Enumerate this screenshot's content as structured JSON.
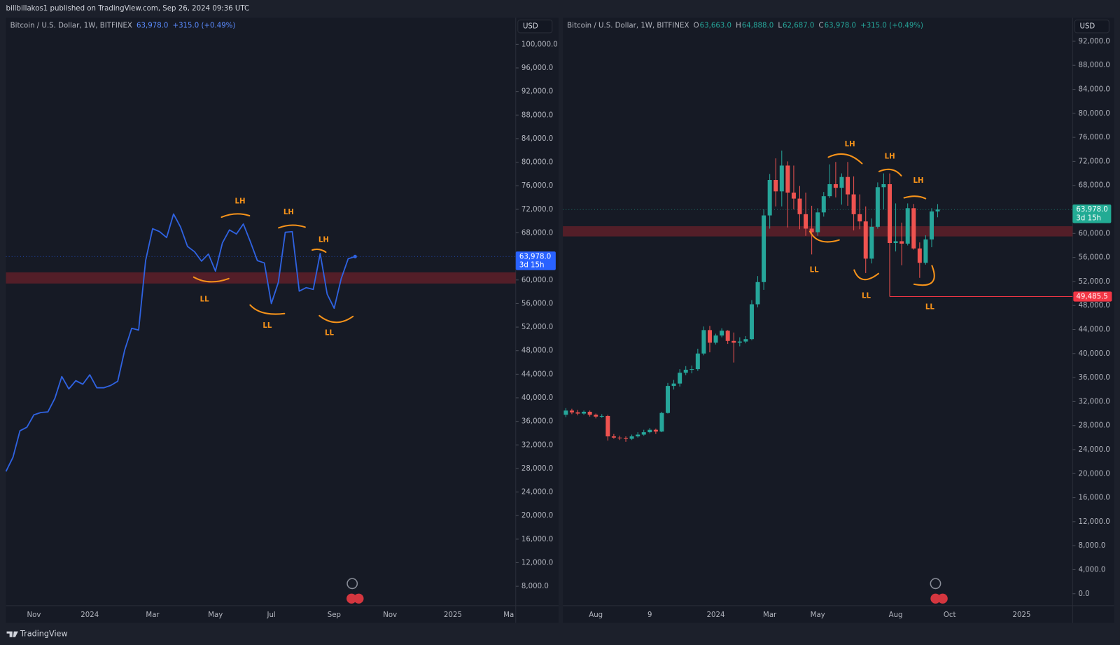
{
  "header": {
    "top": "billbillakos1 published on TradingView.com, Sep 26, 2024 09:36 UTC",
    "footer": "TradingView"
  },
  "chart_data": [
    {
      "type": "line",
      "title": "Bitcoin / U.S. Dollar, 1W, BITFINEX",
      "change": "+315.0 (+0.49%)",
      "currency": "USD",
      "categories": [
        null,
        null,
        null,
        null,
        "Nov",
        null,
        null,
        null,
        null,
        null,
        null,
        null,
        "2024",
        null,
        null,
        null,
        null,
        null,
        null,
        null,
        null,
        "Mar",
        null,
        null,
        null,
        null,
        null,
        null,
        null,
        null,
        "May",
        null,
        null,
        null,
        null,
        null,
        null,
        null,
        "Jul",
        null,
        null,
        null,
        null,
        null,
        null,
        null,
        null,
        "Sep",
        null,
        null,
        null,
        null,
        null,
        null,
        null,
        "Nov",
        null,
        null,
        null,
        null,
        null,
        null,
        null,
        null,
        "2025",
        null,
        null,
        null,
        null,
        null,
        null,
        null,
        "Ma",
        null
      ],
      "values": [
        27500,
        29900,
        34400,
        35000,
        37100,
        37500,
        37600,
        39900,
        43600,
        41500,
        42900,
        42300,
        43900,
        41700,
        41700,
        42100,
        42800,
        48100,
        51800,
        51500,
        63300,
        68700,
        68200,
        67200,
        71200,
        69000,
        65700,
        64800,
        63200,
        64400,
        61500,
        66300,
        68500,
        67800,
        69500,
        66500,
        63300,
        62900,
        56000,
        59600,
        68100,
        68200,
        58100,
        58700,
        58400,
        64500,
        57600,
        55200,
        60200,
        63600,
        63978,
        null,
        null,
        null,
        null,
        null,
        null,
        null,
        null,
        null,
        null,
        null,
        null,
        null,
        null,
        null,
        null,
        null,
        null,
        null,
        null,
        null,
        null,
        null
      ],
      "color": "#2f62e0",
      "ylim": [
        4700,
        104500
      ],
      "yticks": [
        {
          "value": 8000,
          "label": "8,000.0"
        },
        {
          "value": 12000,
          "label": "12,000.0"
        },
        {
          "value": 16000,
          "label": "16,000.0"
        },
        {
          "value": 20000,
          "label": "20,000.0"
        },
        {
          "value": 24000,
          "label": "24,000.0"
        },
        {
          "value": 28000,
          "label": "28,000.0"
        },
        {
          "value": 32000,
          "label": "32,000.0"
        },
        {
          "value": 36000,
          "label": "36,000.0"
        },
        {
          "value": 40000,
          "label": "40,000.0"
        },
        {
          "value": 44000,
          "label": "44,000.0"
        },
        {
          "value": 48000,
          "label": "48,000.0"
        },
        {
          "value": 52000,
          "label": "52,000.0"
        },
        {
          "value": 56000,
          "label": "56,000.0"
        },
        {
          "value": 60000,
          "label": "60,000.0"
        },
        {
          "value": 64000,
          "label": "64,000.0"
        },
        {
          "value": 68000,
          "label": "68,000.0"
        },
        {
          "value": 72000,
          "label": "72,000.0"
        },
        {
          "value": 76000,
          "label": "76,000.0"
        },
        {
          "value": 80000,
          "label": "80,000.0"
        },
        {
          "value": 84000,
          "label": "84,000.0"
        },
        {
          "value": 88000,
          "label": "88,000.0"
        },
        {
          "value": 92000,
          "label": "92,000.0"
        },
        {
          "value": 96000,
          "label": "96,000.0"
        },
        {
          "value": 100000,
          "label": "100,000.0"
        }
      ],
      "zone": [
        59400,
        61300
      ],
      "zone_color": "#5e2029",
      "last_price": {
        "value": 63978,
        "label": "63,978.0",
        "countdown": "3d 15h",
        "color": "#2962ff"
      },
      "annotations": [
        "LH",
        "LH",
        "LH",
        "LL",
        "LL",
        "LL"
      ],
      "annotation_color": "#f7931a"
    },
    {
      "type": "candlestick",
      "title": "Bitcoin / U.S. Dollar, 1W, BITFINEX",
      "ohlc_keys": [
        "O",
        "H",
        "L",
        "C"
      ],
      "ohlc_labels": [
        "63,663.0",
        "64,888.0",
        "62,687.0",
        "63,978.0"
      ],
      "change": "+315.0 (+0.49%)",
      "currency": "USD",
      "categories": [
        null,
        null,
        null,
        null,
        null,
        "Aug",
        null,
        null,
        null,
        null,
        null,
        null,
        null,
        null,
        "9",
        null,
        null,
        null,
        null,
        null,
        null,
        null,
        null,
        null,
        null,
        "2024",
        null,
        null,
        null,
        null,
        null,
        null,
        null,
        null,
        "Mar",
        null,
        null,
        null,
        null,
        null,
        null,
        null,
        "May",
        null,
        null,
        null,
        null,
        null,
        null,
        null,
        null,
        null,
        null,
        null,
        null,
        "Aug",
        null,
        null,
        null,
        null,
        null,
        null,
        null,
        null,
        "Oct",
        null,
        null,
        null,
        null,
        null,
        null,
        null,
        null,
        null,
        null,
        null,
        "2025",
        null,
        null,
        null,
        null,
        null,
        null,
        null,
        null
      ],
      "open": [
        29800,
        30500,
        30200,
        30000,
        30300,
        29800,
        29500,
        29600,
        26200,
        26000,
        25900,
        25800,
        26200,
        26500,
        26900,
        27300,
        27000,
        30100,
        34600,
        35000,
        36800,
        37300,
        37400,
        40000,
        43900,
        41800,
        43000,
        43800,
        42100,
        41800,
        42000,
        42400,
        48200,
        51900,
        63000,
        68900,
        67000,
        71300,
        66800,
        65800,
        63200,
        60800,
        60200,
        63500,
        66200,
        68200,
        67600,
        69400,
        66500,
        63200,
        62000,
        55800,
        61100,
        67700,
        68200,
        58400,
        58700,
        58300,
        64200,
        57500,
        55100,
        59000,
        63663,
        null,
        null,
        null,
        null,
        null,
        null,
        null,
        null,
        null,
        null,
        null,
        null,
        null,
        null,
        null,
        null,
        null,
        null,
        null,
        null,
        null,
        null
      ],
      "high": [
        30900,
        30800,
        30600,
        30500,
        30500,
        30000,
        29900,
        29800,
        26600,
        26300,
        26200,
        26500,
        26900,
        27300,
        27600,
        27500,
        30300,
        35100,
        35600,
        37400,
        37900,
        38000,
        40800,
        44500,
        44600,
        43300,
        44200,
        43900,
        43500,
        42700,
        42900,
        48900,
        52900,
        64000,
        69900,
        72500,
        73800,
        72000,
        71300,
        67900,
        66800,
        64600,
        64200,
        66900,
        71500,
        71900,
        70000,
        71900,
        69500,
        66500,
        64500,
        62500,
        68500,
        70000,
        70000,
        65000,
        61800,
        65000,
        64900,
        58500,
        59700,
        64200,
        64888,
        null,
        null,
        null,
        null,
        null,
        null,
        null,
        null,
        null,
        null,
        null,
        null,
        null,
        null,
        null,
        null,
        null,
        null,
        null,
        null,
        null,
        null
      ],
      "low": [
        29400,
        29900,
        29700,
        29800,
        29500,
        29200,
        29300,
        25500,
        25800,
        25600,
        25300,
        25600,
        26000,
        26300,
        26700,
        26600,
        26900,
        30000,
        34000,
        34500,
        36400,
        36700,
        37100,
        39700,
        40200,
        41500,
        42700,
        41600,
        38500,
        41200,
        41700,
        42200,
        47700,
        50600,
        60800,
        64500,
        64500,
        61000,
        64000,
        60700,
        59600,
        56500,
        59600,
        62800,
        65900,
        66000,
        64800,
        64600,
        60500,
        60700,
        53400,
        55000,
        60800,
        64000,
        49485.5,
        57000,
        54700,
        58000,
        57300,
        52600,
        54800,
        57700,
        62687,
        null,
        null,
        null,
        null,
        null,
        null,
        null,
        null,
        null,
        null,
        null,
        null,
        null,
        null,
        null,
        null,
        null,
        null,
        null,
        null,
        null,
        null
      ],
      "close": [
        30500,
        30200,
        30000,
        30300,
        29800,
        29500,
        29600,
        26200,
        26000,
        25900,
        25800,
        26200,
        26500,
        26900,
        27300,
        27000,
        30100,
        34600,
        35000,
        36800,
        37300,
        37400,
        40000,
        43900,
        41800,
        43000,
        43800,
        42100,
        41800,
        42000,
        42400,
        48200,
        51900,
        63000,
        68900,
        67000,
        71300,
        66800,
        65800,
        63200,
        60800,
        60200,
        63500,
        66200,
        68200,
        67600,
        69400,
        66500,
        63200,
        62000,
        55800,
        61100,
        67700,
        68200,
        58400,
        58700,
        58300,
        64200,
        57500,
        55100,
        59000,
        63663,
        63978,
        null,
        null,
        null,
        null,
        null,
        null,
        null,
        null,
        null,
        null,
        null,
        null,
        null,
        null,
        null,
        null,
        null,
        null,
        null,
        null,
        null,
        null
      ],
      "up_color": "#26a69a",
      "down_color": "#ef5350",
      "ylim": [
        -2000,
        95900
      ],
      "yticks": [
        {
          "value": 0,
          "label": "0.0"
        },
        {
          "value": 4000,
          "label": "4,000.0"
        },
        {
          "value": 8000,
          "label": "8,000.0"
        },
        {
          "value": 12000,
          "label": "12,000.0"
        },
        {
          "value": 16000,
          "label": "16,000.0"
        },
        {
          "value": 20000,
          "label": "20,000.0"
        },
        {
          "value": 24000,
          "label": "24,000.0"
        },
        {
          "value": 28000,
          "label": "28,000.0"
        },
        {
          "value": 32000,
          "label": "32,000.0"
        },
        {
          "value": 36000,
          "label": "36,000.0"
        },
        {
          "value": 40000,
          "label": "40,000.0"
        },
        {
          "value": 44000,
          "label": "44,000.0"
        },
        {
          "value": 48000,
          "label": "48,000.0"
        },
        {
          "value": 52000,
          "label": "52,000.0"
        },
        {
          "value": 56000,
          "label": "56,000.0"
        },
        {
          "value": 60000,
          "label": "60,000.0"
        },
        {
          "value": 64000,
          "label": "64,000.0"
        },
        {
          "value": 68000,
          "label": "68,000.0"
        },
        {
          "value": 72000,
          "label": "72,000.0"
        },
        {
          "value": 76000,
          "label": "76,000.0"
        },
        {
          "value": 80000,
          "label": "80,000.0"
        },
        {
          "value": 84000,
          "label": "84,000.0"
        },
        {
          "value": 88000,
          "label": "88,000.0"
        },
        {
          "value": 92000,
          "label": "92,000.0"
        }
      ],
      "zone": [
        59500,
        61200
      ],
      "zone_color": "#5e2029",
      "last_price": {
        "value": 63978,
        "label": "63,978.0",
        "countdown": "3d 15h",
        "color": "#22ab94"
      },
      "marker": {
        "value": 49485.5,
        "label": "49,485.5",
        "color": "#f23645"
      },
      "annotations": [
        "LH",
        "LH",
        "LH",
        "LL",
        "LL",
        "LL"
      ],
      "annotation_color": "#f7931a"
    }
  ]
}
